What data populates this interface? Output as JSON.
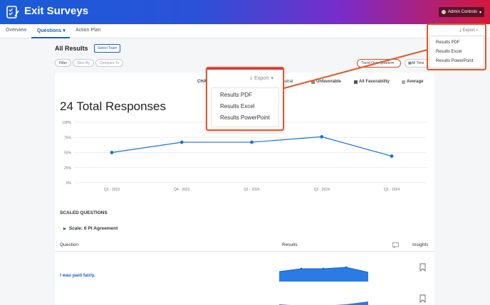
{
  "header": {
    "title": "Exit Surveys",
    "admin_label": "Admin Controls"
  },
  "nav": {
    "tabs": [
      {
        "label": "Overview"
      },
      {
        "label": "Questions"
      },
      {
        "label": "Action Plan"
      }
    ],
    "export_label": "Export"
  },
  "toolbar": {
    "heading": "All Results",
    "select_team": "Select Team",
    "filter": "Filter",
    "slice_by": "Slice By",
    "compare_to": "Compare To",
    "trend_select": "Trend Over Quarter",
    "all_time": "All Time"
  },
  "legend": {
    "chart_label": "CHA",
    "neutral": "Neutral",
    "unfavorable": "Unfavorable",
    "all_favorability": "All Favorability",
    "average": "Average"
  },
  "responses_title": "24 Total Responses",
  "export_menu": {
    "label": "Export",
    "items": [
      "Results PDF",
      "Results Excel",
      "Results PowerPoint"
    ]
  },
  "chart_data": {
    "type": "line",
    "categories": [
      "Q3 - 2023",
      "Q4 - 2023",
      "Q1 - 2024",
      "Q2 - 2024",
      "Q3 - 2024"
    ],
    "values": [
      50,
      67,
      67,
      76,
      44
    ],
    "yticks": [
      "100%",
      "75%",
      "50%",
      "25%",
      "0%"
    ],
    "ylim": [
      0,
      100
    ],
    "color": "#1a6fe0"
  },
  "scaled": {
    "heading": "SCALED QUESTIONS",
    "scale_label": "Scale: 6 Pt Agreement"
  },
  "table": {
    "col_question": "Question",
    "col_results": "Results",
    "col_insights": "Insights",
    "row1_question": "I was paid fairly."
  }
}
